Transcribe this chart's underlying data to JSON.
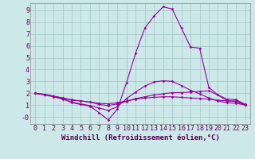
{
  "background_color": "#cce8e8",
  "grid_color": "#aacccc",
  "line_color": "#990099",
  "marker_color": "#990099",
  "xlabel": "Windchill (Refroidissement éolien,°C)",
  "xlabel_fontsize": 6.5,
  "tick_fontsize": 6,
  "xlim": [
    -0.5,
    23.5
  ],
  "ylim": [
    -0.6,
    9.6
  ],
  "xtick_labels": [
    "0",
    "1",
    "2",
    "3",
    "4",
    "5",
    "6",
    "7",
    "8",
    "9",
    "10",
    "11",
    "12",
    "13",
    "14",
    "15",
    "16",
    "17",
    "18",
    "19",
    "20",
    "21",
    "22",
    "23"
  ],
  "ytick_vals": [
    0,
    1,
    2,
    3,
    4,
    5,
    6,
    7,
    8,
    9
  ],
  "ytick_labels": [
    "-0",
    "1",
    "2",
    "3",
    "4",
    "5",
    "6",
    "7",
    "8",
    "9"
  ],
  "series": [
    [
      2.0,
      1.9,
      1.75,
      1.55,
      1.2,
      1.05,
      0.9,
      0.35,
      -0.25,
      0.65,
      2.9,
      5.4,
      7.5,
      8.5,
      9.3,
      9.1,
      7.5,
      5.9,
      5.8,
      2.5,
      1.85,
      1.35,
      1.3,
      1.0
    ],
    [
      2.0,
      1.9,
      1.75,
      1.6,
      1.4,
      1.35,
      1.25,
      1.05,
      0.95,
      1.1,
      1.3,
      1.55,
      1.7,
      1.85,
      1.95,
      2.05,
      2.05,
      2.1,
      2.15,
      2.2,
      1.85,
      1.5,
      1.45,
      1.05
    ],
    [
      2.0,
      1.9,
      1.75,
      1.6,
      1.45,
      1.35,
      1.25,
      1.15,
      1.1,
      1.2,
      1.35,
      1.5,
      1.6,
      1.65,
      1.7,
      1.7,
      1.65,
      1.6,
      1.55,
      1.5,
      1.4,
      1.35,
      1.35,
      1.05
    ],
    [
      2.0,
      1.85,
      1.7,
      1.5,
      1.25,
      1.1,
      0.95,
      0.75,
      0.55,
      0.85,
      1.55,
      2.1,
      2.6,
      2.95,
      3.05,
      3.0,
      2.65,
      2.25,
      1.95,
      1.6,
      1.35,
      1.2,
      1.15,
      1.0
    ]
  ]
}
